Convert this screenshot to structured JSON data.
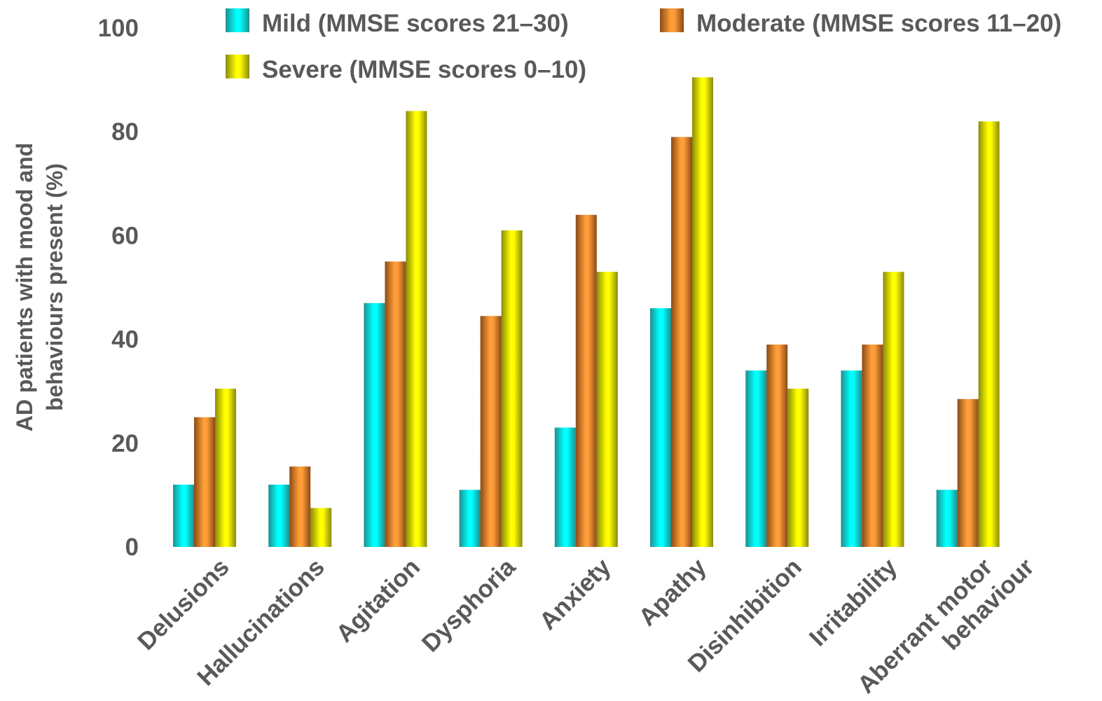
{
  "chart_data": {
    "type": "bar",
    "title": "",
    "xlabel": "",
    "ylabel_lines": [
      "AD patients with mood and",
      "behaviours present (%)"
    ],
    "ylim": [
      0,
      100
    ],
    "yticks": [
      "0",
      "20",
      "40",
      "60",
      "80",
      "100"
    ],
    "grid": false,
    "legend_position": "top",
    "categories": [
      [
        "Delusions"
      ],
      [
        "Hallucinations"
      ],
      [
        "Agitation"
      ],
      [
        "Dysphoria"
      ],
      [
        "Anxiety"
      ],
      [
        "Apathy"
      ],
      [
        "Disinhibition"
      ],
      [
        "Irritability"
      ],
      [
        "Aberrant motor",
        "behaviour"
      ]
    ],
    "series": [
      {
        "name": "Mild (MMSE scores 21–30)",
        "color_light": "#00ffff",
        "color_dark": "#1f8f8f",
        "values": [
          12,
          12,
          47,
          11,
          23,
          46,
          34,
          34,
          11
        ]
      },
      {
        "name": "Moderate (MMSE scores 11–20)",
        "color_light": "#ff9e38",
        "color_dark": "#8a4a16",
        "values": [
          25,
          15.5,
          55,
          44.5,
          64,
          79,
          39,
          39,
          28.5
        ]
      },
      {
        "name": "Severe (MMSE scores 0–10)",
        "color_light": "#ffff00",
        "color_dark": "#8a8a0a",
        "values": [
          30.5,
          7.5,
          84,
          61,
          53,
          90.5,
          30.5,
          53,
          82
        ]
      }
    ]
  }
}
